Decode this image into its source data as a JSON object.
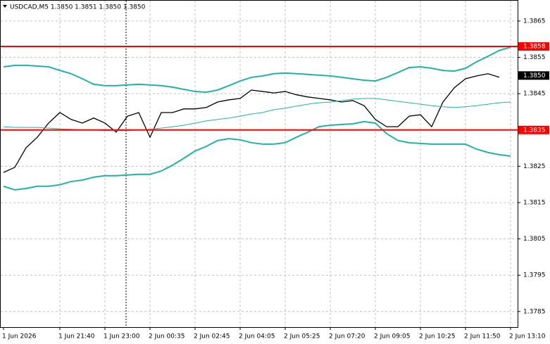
{
  "chart_data": {
    "type": "line",
    "title": "USDCAD,M5  1.3850 1.3851 1.3850 1.3850",
    "categories": [
      "1 Jun 2026",
      null,
      null,
      null,
      null,
      "1 Jun 21:40",
      null,
      null,
      null,
      "1 Jun 23:00",
      null,
      null,
      null,
      "2 Jun 00:35",
      null,
      null,
      null,
      "2 Jun 02:45",
      null,
      null,
      null,
      "2 Jun 04:05",
      null,
      null,
      null,
      "2 Jun 05:25",
      null,
      null,
      null,
      "2 Jun 07:20",
      null,
      null,
      null,
      "2 Jun 09:05",
      null,
      null,
      null,
      "2 Jun 10:25",
      null,
      null,
      null,
      "2 Jun 11:50",
      null,
      null,
      null,
      "2 Jun 13:10"
    ],
    "series": [
      {
        "color": "#000000",
        "width": 1.3,
        "values": [
          1.38233,
          1.38247,
          1.38301,
          1.3833,
          1.38369,
          1.38398,
          1.38379,
          1.38369,
          1.38383,
          1.38369,
          1.38344,
          1.38388,
          1.38398,
          1.3833,
          1.38398,
          1.38398,
          1.38408,
          1.38408,
          1.38412,
          1.38427,
          1.38433,
          1.38437,
          1.3846,
          1.38456,
          1.38452,
          1.38456,
          1.38447,
          1.38441,
          1.38437,
          1.38433,
          1.38427,
          1.38431,
          1.38417,
          1.38379,
          1.38359,
          1.38359,
          1.38388,
          1.38392,
          1.38359,
          1.38427,
          1.38466,
          1.38491,
          1.38499,
          1.38505,
          1.38495,
          null
        ]
      },
      {
        "color": "#20b2aa",
        "width": 2,
        "values": [
          1.38524,
          1.38528,
          1.38528,
          1.38526,
          1.38524,
          1.38514,
          1.38505,
          1.38491,
          1.38476,
          1.38472,
          1.38472,
          1.38474,
          1.38476,
          1.38474,
          1.38472,
          1.38468,
          1.38462,
          1.38456,
          1.38454,
          1.3846,
          1.38472,
          1.38485,
          1.38495,
          1.38499,
          1.38505,
          1.38507,
          1.38505,
          1.38503,
          1.38501,
          1.38499,
          1.38495,
          1.38491,
          1.38487,
          1.38485,
          1.38495,
          1.38508,
          1.38522,
          1.38524,
          1.3852,
          1.38514,
          1.38512,
          1.3852,
          1.38538,
          1.38553,
          1.38569,
          1.38578
        ]
      },
      {
        "color": "#20b2aa",
        "width": 1,
        "values": [
          1.38359,
          1.38357,
          1.38357,
          1.38357,
          1.38355,
          1.38353,
          1.38352,
          1.3835,
          1.3835,
          1.38348,
          1.38348,
          1.38348,
          1.3835,
          1.38352,
          1.38355,
          1.38359,
          1.38363,
          1.38369,
          1.38375,
          1.38379,
          1.38383,
          1.38388,
          1.38394,
          1.38398,
          1.38406,
          1.3841,
          1.38416,
          1.38421,
          1.38425,
          1.38427,
          1.38431,
          1.38435,
          1.38437,
          1.38437,
          1.38433,
          1.38429,
          1.38425,
          1.38421,
          1.38417,
          1.38414,
          1.38412,
          1.38414,
          1.38417,
          1.38421,
          1.38425,
          1.38427
        ]
      },
      {
        "color": "#20b2aa",
        "width": 2,
        "values": [
          1.38195,
          1.38185,
          1.38189,
          1.38195,
          1.38195,
          1.38199,
          1.38208,
          1.38212,
          1.3822,
          1.38224,
          1.38224,
          1.38226,
          1.38228,
          1.38228,
          1.38237,
          1.38253,
          1.38272,
          1.38292,
          1.38305,
          1.38321,
          1.38326,
          1.38323,
          1.38315,
          1.38311,
          1.38311,
          1.38315,
          1.3833,
          1.38344,
          1.38359,
          1.38363,
          1.38365,
          1.38367,
          1.38373,
          1.38369,
          1.3834,
          1.38321,
          1.38315,
          1.38313,
          1.38311,
          1.38311,
          1.38311,
          1.38311,
          1.38297,
          1.38288,
          1.38282,
          1.38278
        ]
      }
    ],
    "ylim": [
      1.37807,
      1.38708
    ],
    "yticks": [
      1.3865,
      1.3855,
      1.3845,
      1.3825,
      1.3815,
      1.3805,
      1.3795,
      1.3785
    ],
    "grid": true,
    "hlines": [
      1.3858,
      1.3835
    ],
    "hline_color": "#ff0000",
    "last_price": {
      "value": 1.385,
      "label": "1.3850"
    }
  }
}
